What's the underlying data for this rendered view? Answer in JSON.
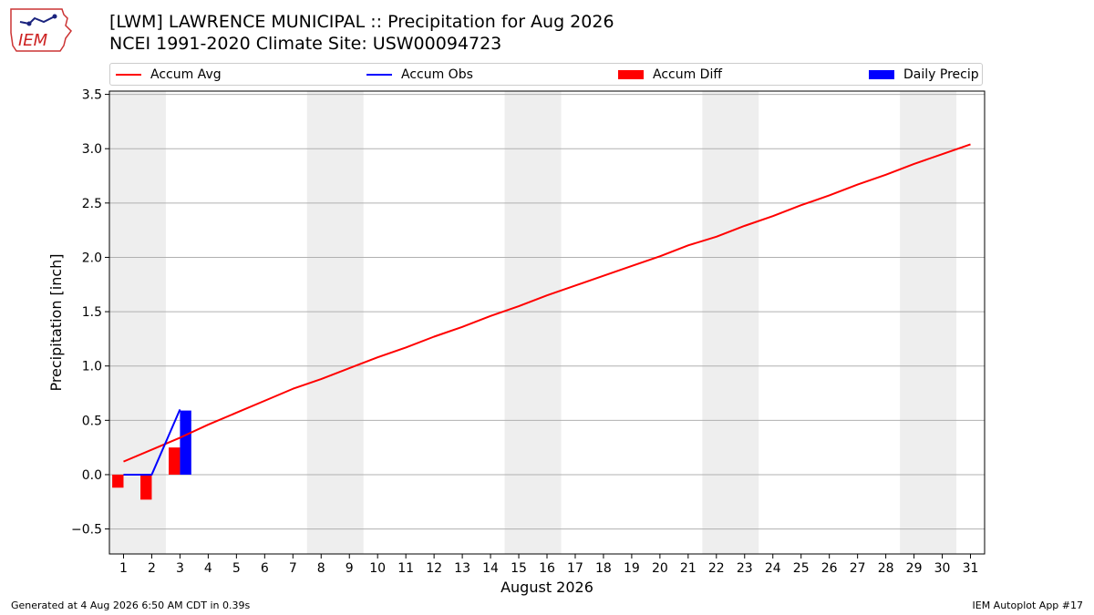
{
  "header": {
    "title_line1": "[LWM] LAWRENCE MUNICIPAL :: Precipitation for Aug 2026",
    "title_line2": "NCEI 1991-2020 Climate Site: USW00094723",
    "logo_text": "IEM"
  },
  "legend": {
    "items": [
      {
        "label": "Accum Avg",
        "color": "#ff0000",
        "kind": "line"
      },
      {
        "label": "Accum Obs",
        "color": "#0000ff",
        "kind": "line"
      },
      {
        "label": "Accum Diff",
        "color": "#ff0000",
        "kind": "bar"
      },
      {
        "label": "Daily Precip",
        "color": "#0000ff",
        "kind": "bar"
      }
    ]
  },
  "footer": {
    "left": "Generated at 4 Aug 2026 6:50 AM CDT in 0.39s",
    "right": "IEM Autoplot App #17"
  },
  "chart_data": {
    "type": "line",
    "title": "[LWM] LAWRENCE MUNICIPAL :: Precipitation for Aug 2026",
    "xlabel": "August 2026",
    "ylabel": "Precipitation [inch]",
    "xlim": [
      0.5,
      31.5
    ],
    "ylim": [
      -0.73,
      3.53
    ],
    "yticks": [
      -0.5,
      0.0,
      0.5,
      1.0,
      1.5,
      2.0,
      2.5,
      3.0,
      3.5
    ],
    "ytick_labels": [
      "−0.5",
      "0.0",
      "0.5",
      "1.0",
      "1.5",
      "2.0",
      "2.5",
      "3.0",
      "3.5"
    ],
    "x": [
      1,
      2,
      3,
      4,
      5,
      6,
      7,
      8,
      9,
      10,
      11,
      12,
      13,
      14,
      15,
      16,
      17,
      18,
      19,
      20,
      21,
      22,
      23,
      24,
      25,
      26,
      27,
      28,
      29,
      30,
      31
    ],
    "xtick_labels": [
      "1",
      "2",
      "3",
      "4",
      "5",
      "6",
      "7",
      "8",
      "9",
      "10",
      "11",
      "12",
      "13",
      "14",
      "15",
      "16",
      "17",
      "18",
      "19",
      "20",
      "21",
      "22",
      "23",
      "24",
      "25",
      "26",
      "27",
      "28",
      "29",
      "30",
      "31"
    ],
    "grid": "horizontal",
    "weekend_shading": [
      [
        0.5,
        2.5
      ],
      [
        7.5,
        9.5
      ],
      [
        14.5,
        16.5
      ],
      [
        21.5,
        23.5
      ],
      [
        28.5,
        30.5
      ]
    ],
    "series": [
      {
        "name": "Accum Avg",
        "type": "line",
        "color": "#ff0000",
        "x": [
          1,
          2,
          3,
          4,
          5,
          6,
          7,
          8,
          9,
          10,
          11,
          12,
          13,
          14,
          15,
          16,
          17,
          18,
          19,
          20,
          21,
          22,
          23,
          24,
          25,
          26,
          27,
          28,
          29,
          30,
          31
        ],
        "values": [
          0.12,
          0.23,
          0.34,
          0.46,
          0.57,
          0.68,
          0.79,
          0.88,
          0.98,
          1.08,
          1.17,
          1.27,
          1.36,
          1.46,
          1.55,
          1.65,
          1.74,
          1.83,
          1.92,
          2.01,
          2.11,
          2.19,
          2.29,
          2.38,
          2.48,
          2.57,
          2.67,
          2.76,
          2.86,
          2.95,
          3.04
        ]
      },
      {
        "name": "Accum Obs",
        "type": "line",
        "color": "#0000ff",
        "x": [
          1,
          2,
          3
        ],
        "values": [
          0.0,
          0.0,
          0.6
        ]
      },
      {
        "name": "Accum Diff",
        "type": "bar",
        "color": "#ff0000",
        "x": [
          1,
          2,
          3
        ],
        "values": [
          -0.12,
          -0.23,
          0.25
        ]
      },
      {
        "name": "Daily Precip",
        "type": "bar",
        "color": "#0000ff",
        "x": [
          3
        ],
        "values": [
          0.59
        ]
      }
    ]
  }
}
